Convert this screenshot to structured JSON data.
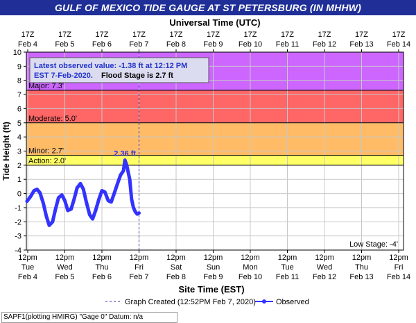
{
  "chart_data": {
    "type": "line",
    "title": "GULF OF MEXICO TIDE GAUGE AT ST PETERSBURG (IN MHHW)",
    "top_axis_title": "Universal Time (UTC)",
    "top_ticks": [
      {
        "time": "17Z",
        "date": "Feb 4"
      },
      {
        "time": "17Z",
        "date": "Feb 5"
      },
      {
        "time": "17Z",
        "date": "Feb 6"
      },
      {
        "time": "17Z",
        "date": "Feb 7"
      },
      {
        "time": "17Z",
        "date": "Feb 8"
      },
      {
        "time": "17Z",
        "date": "Feb 9"
      },
      {
        "time": "17Z",
        "date": "Feb 10"
      },
      {
        "time": "17Z",
        "date": "Feb 11"
      },
      {
        "time": "17Z",
        "date": "Feb 12"
      },
      {
        "time": "17Z",
        "date": "Feb 13"
      },
      {
        "time": "17Z",
        "date": "Feb 14"
      }
    ],
    "bottom_axis_title": "Site Time (EST)",
    "bottom_ticks": [
      {
        "time": "12pm",
        "day": "Tue",
        "date": "Feb 4"
      },
      {
        "time": "12pm",
        "day": "Wed",
        "date": "Feb 5"
      },
      {
        "time": "12pm",
        "day": "Thu",
        "date": "Feb 6"
      },
      {
        "time": "12pm",
        "day": "Fri",
        "date": "Feb 7"
      },
      {
        "time": "12pm",
        "day": "Sat",
        "date": "Feb 8"
      },
      {
        "time": "12pm",
        "day": "Sun",
        "date": "Feb 9"
      },
      {
        "time": "12pm",
        "day": "Mon",
        "date": "Feb 10"
      },
      {
        "time": "12pm",
        "day": "Tue",
        "date": "Feb 11"
      },
      {
        "time": "12pm",
        "day": "Wed",
        "date": "Feb 12"
      },
      {
        "time": "12pm",
        "day": "Thu",
        "date": "Feb 13"
      },
      {
        "time": "12pm",
        "day": "Fri",
        "date": "Feb 14"
      }
    ],
    "xlim_days": [
      0,
      10
    ],
    "ylabel": "Tide Height (ft)",
    "ylim": [
      -4,
      10
    ],
    "yticks": [
      -4,
      -3,
      -2,
      -1,
      0,
      1,
      2,
      3,
      4,
      5,
      6,
      7,
      8,
      9,
      10
    ],
    "grid": true,
    "stages": [
      {
        "name": "Major",
        "label": "Major: 7.3'",
        "value": 7.3,
        "color": "#cc66ff"
      },
      {
        "name": "Moderate",
        "label": "Moderate: 5.0'",
        "value": 5.0,
        "color": "#ff6666"
      },
      {
        "name": "Minor",
        "label": "Minor: 2.7'",
        "value": 2.7,
        "color": "#ffbb66"
      },
      {
        "name": "Action",
        "label": "Action: 2.0'",
        "value": 2.0,
        "color": "#ffff66"
      }
    ],
    "low_stage_label": "Low Stage: -4'",
    "peak_label": "2.36 ft",
    "peak_value": 2.36,
    "graph_created_day": 3.0,
    "info_box": {
      "line1": "Latest observed value: -1.38 ft at 12:12 PM",
      "line2_a": "EST 7-Feb-2020.",
      "line2_b": "Flood Stage is 2.7 ft"
    },
    "series": [
      {
        "name": "Observed",
        "color": "#3333ff",
        "points": [
          [
            -0.02,
            -0.55
          ],
          [
            0.08,
            -0.2
          ],
          [
            0.17,
            0.2
          ],
          [
            0.25,
            0.3
          ],
          [
            0.33,
            0.05
          ],
          [
            0.42,
            -0.7
          ],
          [
            0.5,
            -1.6
          ],
          [
            0.58,
            -2.25
          ],
          [
            0.67,
            -2.0
          ],
          [
            0.75,
            -1.1
          ],
          [
            0.83,
            -0.3
          ],
          [
            0.92,
            -0.1
          ],
          [
            1.0,
            -0.5
          ],
          [
            1.08,
            -1.2
          ],
          [
            1.17,
            -1.1
          ],
          [
            1.25,
            -0.4
          ],
          [
            1.33,
            0.4
          ],
          [
            1.42,
            0.7
          ],
          [
            1.5,
            0.3
          ],
          [
            1.58,
            -0.6
          ],
          [
            1.67,
            -1.5
          ],
          [
            1.75,
            -1.8
          ],
          [
            1.83,
            -1.2
          ],
          [
            1.92,
            -0.4
          ],
          [
            2.0,
            0.2
          ],
          [
            2.08,
            0.1
          ],
          [
            2.17,
            -0.5
          ],
          [
            2.25,
            -0.6
          ],
          [
            2.33,
            0.0
          ],
          [
            2.42,
            0.7
          ],
          [
            2.5,
            1.3
          ],
          [
            2.58,
            1.6
          ],
          [
            2.62,
            2.36
          ],
          [
            2.67,
            2.0
          ],
          [
            2.75,
            1.0
          ],
          [
            2.8,
            -0.4
          ],
          [
            2.85,
            -1.0
          ],
          [
            2.9,
            -1.3
          ],
          [
            2.95,
            -1.45
          ],
          [
            3.0,
            -1.38
          ]
        ]
      }
    ],
    "legend": {
      "graph_created": "Graph Created (12:52PM Feb 7, 2020)",
      "observed": "Observed"
    },
    "footer": "SAPF1(plotting HMIRG) \"Gage 0\" Datum: n/a"
  }
}
